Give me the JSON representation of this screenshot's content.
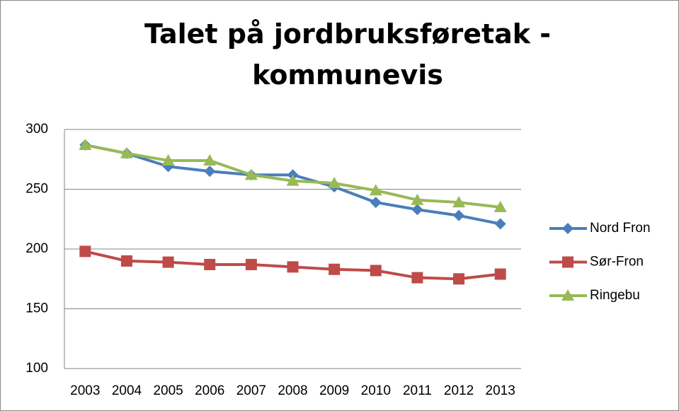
{
  "chart_data": {
    "type": "line",
    "title": "Talet på jordbruksføretak - kommunevis",
    "categories": [
      "2003",
      "2004",
      "2005",
      "2006",
      "2007",
      "2008",
      "2009",
      "2010",
      "2011",
      "2012",
      "2013"
    ],
    "series": [
      {
        "name": "Nord Fron",
        "color": "#4a7ebb",
        "marker": "diamond",
        "values": [
          287,
          280,
          269,
          265,
          262,
          262,
          252,
          239,
          233,
          228,
          221
        ]
      },
      {
        "name": "Sør-Fron",
        "color": "#be4b48",
        "marker": "square",
        "values": [
          198,
          190,
          189,
          187,
          187,
          185,
          183,
          182,
          176,
          175,
          179
        ]
      },
      {
        "name": "Ringebu",
        "color": "#98b954",
        "marker": "triangle",
        "values": [
          287,
          280,
          274,
          274,
          262,
          257,
          255,
          249,
          241,
          239,
          235
        ]
      }
    ],
    "ylim": [
      100,
      300
    ],
    "yticks": [
      100,
      150,
      200,
      250,
      300
    ],
    "grid": true,
    "legend": "right"
  }
}
